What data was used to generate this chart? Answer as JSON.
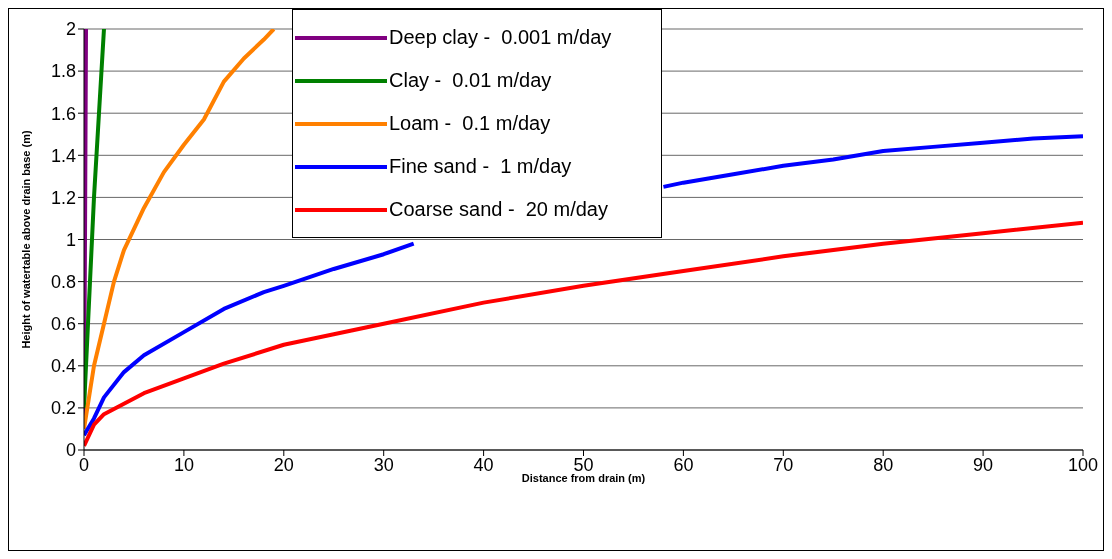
{
  "chart_data": {
    "type": "line",
    "xlabel": "Distance from drain (m)",
    "ylabel": "Height of watertable above drain base (m)",
    "xlim": [
      0,
      100
    ],
    "xticks": [
      0,
      10,
      20,
      30,
      40,
      50,
      60,
      70,
      80,
      90,
      100
    ],
    "ylim": [
      0,
      2
    ],
    "yticks": [
      0,
      0.2,
      0.4,
      0.6,
      0.8,
      1,
      1.2,
      1.4,
      1.6,
      1.8,
      2
    ],
    "grid": "y",
    "legend": "top",
    "marker": "none",
    "line_style": "solid",
    "series": [
      {
        "name": "Deep clay -  0.001 m/day",
        "color": "#800080",
        "x": [
          0,
          0.1,
          0.2
        ],
        "values": [
          0.1,
          1,
          2
        ]
      },
      {
        "name": "Clay -  0.01 m/day",
        "color": "#008000",
        "x": [
          0,
          0.5,
          1,
          1.5,
          2
        ],
        "values": [
          0.2,
          0.7,
          1.2,
          1.6,
          2
        ]
      },
      {
        "name": "Loam -  0.1 m/day",
        "color": "#ff8000",
        "x": [
          0,
          1,
          2,
          3,
          4,
          6,
          8,
          10,
          12,
          14,
          16,
          18,
          19
        ],
        "values": [
          0.1,
          0.4,
          0.6,
          0.8,
          0.95,
          1.15,
          1.32,
          1.45,
          1.57,
          1.75,
          1.86,
          1.95,
          2
        ]
      },
      {
        "name": "Fine sand -  1 m/day",
        "color": "#0000ff",
        "x": [
          0,
          1,
          2,
          4,
          6,
          10,
          14,
          18,
          20,
          25,
          30,
          33,
          45,
          58,
          60,
          65,
          70,
          75,
          80,
          85,
          90,
          95,
          100
        ],
        "values": [
          0.07,
          0.15,
          0.25,
          0.37,
          0.45,
          0.56,
          0.67,
          0.75,
          0.78,
          0.86,
          0.93,
          0.98,
          null,
          1.25,
          1.27,
          1.31,
          1.35,
          1.38,
          1.42,
          1.44,
          1.46,
          1.48,
          1.49
        ]
      },
      {
        "name": "Coarse sand -  20 m/day",
        "color": "#ff0000",
        "x": [
          0,
          1,
          2,
          4,
          6,
          10,
          14,
          20,
          25,
          30,
          40,
          50,
          60,
          70,
          80,
          90,
          100
        ],
        "values": [
          0.02,
          0.12,
          0.17,
          0.22,
          0.27,
          0.34,
          0.41,
          0.5,
          0.55,
          0.6,
          0.7,
          0.78,
          0.85,
          0.92,
          0.98,
          1.03,
          1.08
        ]
      }
    ]
  }
}
